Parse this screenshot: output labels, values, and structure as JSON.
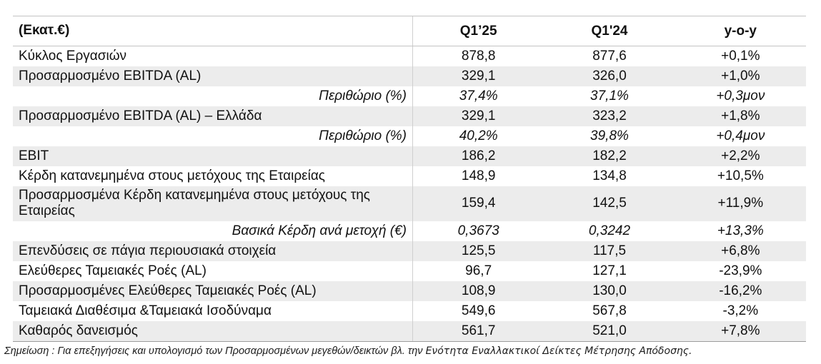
{
  "colors": {
    "stripe": "#ececec",
    "table_top_border": "#c3c3c3",
    "header_underline": "#c3c3c3",
    "table_bottom_border": "#9c9c9c",
    "column_divider": "#cfcfcf",
    "text": "#111111"
  },
  "table": {
    "unit_label": "(Εκατ.€)",
    "columns": [
      "Q1’25",
      "Q1'24",
      "y-o-y"
    ],
    "rows": [
      {
        "label": "Κύκλος Εργασιών",
        "q1_25": "878,8",
        "q1_24": "877,6",
        "yoy": "+0,1%",
        "italic": false,
        "shaded": false,
        "double": false
      },
      {
        "label": "Προσαρμοσμένο EBITDA (AL)",
        "q1_25": "329,1",
        "q1_24": "326,0",
        "yoy": "+1,0%",
        "italic": false,
        "shaded": true,
        "double": false
      },
      {
        "label": "Περιθώριο (%)",
        "q1_25": "37,4%",
        "q1_24": "37,1%",
        "yoy": "+0,3μον",
        "italic": true,
        "shaded": false,
        "double": false
      },
      {
        "label": "Προσαρμοσμένο EBITDA (AL) – Ελλάδα",
        "q1_25": "329,1",
        "q1_24": "323,2",
        "yoy": "+1,8%",
        "italic": false,
        "shaded": true,
        "double": false
      },
      {
        "label": "Περιθώριο (%)",
        "q1_25": "40,2%",
        "q1_24": "39,8%",
        "yoy": "+0,4μον",
        "italic": true,
        "shaded": false,
        "double": false
      },
      {
        "label": "EBIT",
        "q1_25": "186,2",
        "q1_24": "182,2",
        "yoy": "+2,2%",
        "italic": false,
        "shaded": true,
        "double": false
      },
      {
        "label": "Κέρδη κατανεμημένα στους μετόχους της Εταιρείας",
        "q1_25": "148,9",
        "q1_24": "134,8",
        "yoy": "+10,5%",
        "italic": false,
        "shaded": false,
        "double": false
      },
      {
        "label": "Προσαρμοσμένα Κέρδη κατανεμημένα στους μετόχους της Εταιρείας",
        "q1_25": "159,4",
        "q1_24": "142,5",
        "yoy": "+11,9%",
        "italic": false,
        "shaded": true,
        "double": true
      },
      {
        "label": "Βασικά Κέρδη ανά μετοχή (€)",
        "q1_25": "0,3673",
        "q1_24": "0,3242",
        "yoy": "+13,3%",
        "italic": true,
        "shaded": false,
        "double": false
      },
      {
        "label": "Επενδύσεις σε πάγια περιουσιακά στοιχεία",
        "q1_25": "125,5",
        "q1_24": "117,5",
        "yoy": "+6,8%",
        "italic": false,
        "shaded": true,
        "double": false
      },
      {
        "label": "Ελεύθερες Ταμειακές Ροές (AL)",
        "q1_25": "96,7",
        "q1_24": "127,1",
        "yoy": "-23,9%",
        "italic": false,
        "shaded": false,
        "double": false
      },
      {
        "label": "Προσαρμοσμένες Ελεύθερες Ταμειακές Ροές (AL)",
        "q1_25": "108,9",
        "q1_24": "130,0",
        "yoy": "-16,2%",
        "italic": false,
        "shaded": true,
        "double": false
      },
      {
        "label": "Ταμειακά Διαθέσιμα &Ταμειακά Ισοδύναμα",
        "q1_25": "549,6",
        "q1_24": "567,8",
        "yoy": "-3,2%",
        "italic": false,
        "shaded": false,
        "double": false
      },
      {
        "label": "Καθαρός δανεισμός",
        "q1_25": "561,7",
        "q1_24": "521,0",
        "yoy": "+7,8%",
        "italic": false,
        "shaded": true,
        "double": false
      }
    ]
  },
  "note": {
    "prefix": "Σημείωση : Για επεξηγήσεις και υπολογισμό των Προσαρμοσμένων μεγεθών/δεικτών βλ. την ",
    "section_name": "Ενότητα Εναλλακτικοί Δείκτες Μέτρησης Απόδοσης."
  }
}
